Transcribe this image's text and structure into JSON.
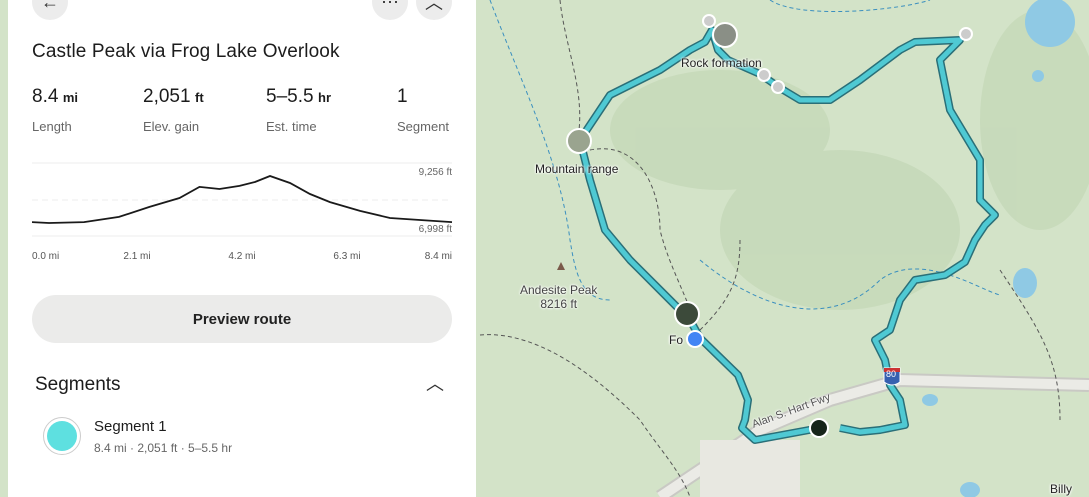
{
  "header": {
    "back_icon": "arrow-left-icon",
    "more_icon": "ellipsis-icon",
    "collapse_icon": "chevron-up-icon"
  },
  "trail": {
    "title": "Castle Peak via Frog Lake Overlook"
  },
  "stats": [
    {
      "value": "8.4",
      "unit": "mi",
      "label": "Length"
    },
    {
      "value": "2,051",
      "unit": "ft",
      "label": "Elev. gain"
    },
    {
      "value": "5–5.5",
      "unit": "hr",
      "label": "Est. time"
    },
    {
      "value": "1",
      "unit": "",
      "label": "Segment"
    }
  ],
  "chart_data": {
    "type": "line",
    "x_ticks": [
      "0.0 mi",
      "2.1 mi",
      "4.2 mi",
      "6.3 mi",
      "8.4 mi"
    ],
    "y_labels": {
      "max": "9,256 ft",
      "min": "6,998 ft"
    },
    "ylim": [
      6998,
      9256
    ],
    "xlim": [
      0,
      8.4
    ],
    "x": [
      0,
      0.34,
      1.04,
      1.74,
      2.35,
      2.95,
      3.35,
      3.75,
      4.15,
      4.46,
      4.76,
      5.16,
      5.56,
      5.96,
      6.56,
      7.16,
      7.76,
      8.4
    ],
    "y": [
      7040,
      6998,
      7040,
      7290,
      7770,
      8200,
      8730,
      8630,
      8780,
      8970,
      9256,
      8920,
      8390,
      8000,
      7580,
      7240,
      7140,
      7040
    ],
    "line_color": "#1a1a1a"
  },
  "preview_button": "Preview route",
  "segments": {
    "title": "Segments",
    "items": [
      {
        "name": "Segment 1",
        "meta": "8.4 mi  ·  2,051 ft  ·  5–5.5 hr",
        "color": "#5ee0e0"
      }
    ]
  },
  "map": {
    "labels": {
      "rock": "Rock formation",
      "mountain": "Mountain range",
      "peak_name": "Andesite Peak",
      "peak_elev": "8216 ft",
      "forest": "Fo",
      "freeway": "Alan S. Hart Fwy",
      "interstate": "80",
      "town": "Billy"
    },
    "route_color": "#4fc9d3",
    "location_color": "#4285f4"
  }
}
